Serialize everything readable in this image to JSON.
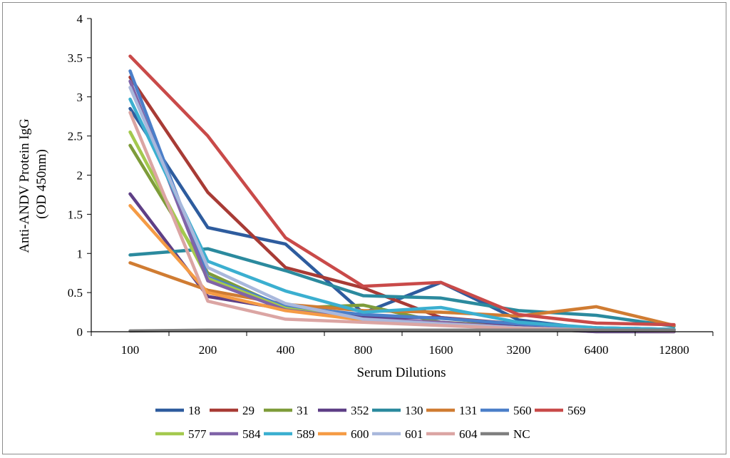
{
  "chart_data": {
    "type": "line",
    "title": "",
    "xlabel": "Serum Dilutions",
    "ylabel_lines": [
      "Anti-ANDV  Protein  IgG",
      "(OD 450nm)"
    ],
    "categories": [
      "100",
      "200",
      "400",
      "800",
      "1600",
      "3200",
      "6400",
      "12800"
    ],
    "ylim": [
      0,
      4
    ],
    "yticks": [
      "0",
      "0.5",
      "1",
      "1.5",
      "2",
      "2.5",
      "3",
      "3.5",
      "4"
    ],
    "legend_position": "bottom",
    "series": [
      {
        "name": "18",
        "color": "#2E5C9E",
        "values": [
          2.85,
          1.33,
          1.12,
          0.24,
          0.63,
          0.15,
          0.03,
          0.02
        ]
      },
      {
        "name": "29",
        "color": "#A83B35",
        "values": [
          3.25,
          1.78,
          0.82,
          0.56,
          0.18,
          0.1,
          0.05,
          0.03
        ]
      },
      {
        "name": "31",
        "color": "#7E9C3A",
        "values": [
          2.38,
          0.75,
          0.3,
          0.34,
          0.12,
          0.07,
          0.03,
          0.02
        ]
      },
      {
        "name": "352",
        "color": "#5E3F86",
        "values": [
          1.76,
          0.45,
          0.29,
          0.18,
          0.18,
          0.08,
          0.02,
          0.02
        ]
      },
      {
        "name": "130",
        "color": "#2B8A9E",
        "values": [
          0.98,
          1.06,
          0.78,
          0.46,
          0.43,
          0.27,
          0.21,
          0.07
        ]
      },
      {
        "name": "131",
        "color": "#D07C32",
        "values": [
          0.88,
          0.53,
          0.35,
          0.27,
          0.25,
          0.2,
          0.32,
          0.08
        ]
      },
      {
        "name": "560",
        "color": "#4B7FC9",
        "values": [
          3.33,
          0.7,
          0.32,
          0.22,
          0.17,
          0.1,
          0.05,
          0.03
        ]
      },
      {
        "name": "569",
        "color": "#C94A49",
        "values": [
          3.52,
          2.5,
          1.2,
          0.58,
          0.63,
          0.22,
          0.11,
          0.09
        ]
      },
      {
        "name": "577",
        "color": "#A4C94E",
        "values": [
          2.55,
          0.68,
          0.3,
          0.15,
          0.1,
          0.05,
          0.0,
          0.0
        ]
      },
      {
        "name": "584",
        "color": "#8064A8",
        "values": [
          3.2,
          0.65,
          0.28,
          0.16,
          0.12,
          0.05,
          0.0,
          0.0
        ]
      },
      {
        "name": "589",
        "color": "#3BAFD0",
        "values": [
          2.97,
          0.9,
          0.52,
          0.25,
          0.31,
          0.12,
          0.05,
          0.03
        ]
      },
      {
        "name": "600",
        "color": "#F59B45",
        "values": [
          1.61,
          0.5,
          0.27,
          0.15,
          0.1,
          0.05,
          0.02,
          0.02
        ]
      },
      {
        "name": "601",
        "color": "#A9B8DC",
        "values": [
          3.12,
          0.82,
          0.36,
          0.16,
          0.1,
          0.05,
          0.02,
          0.02
        ]
      },
      {
        "name": "604",
        "color": "#DBA5A3",
        "values": [
          2.8,
          0.39,
          0.16,
          0.12,
          0.08,
          0.04,
          0.02,
          0.01
        ]
      },
      {
        "name": "NC",
        "color": "#7F7F7F",
        "values": [
          0.01,
          0.02,
          0.02,
          0.02,
          0.02,
          0.02,
          0.02,
          0.02
        ]
      }
    ]
  }
}
